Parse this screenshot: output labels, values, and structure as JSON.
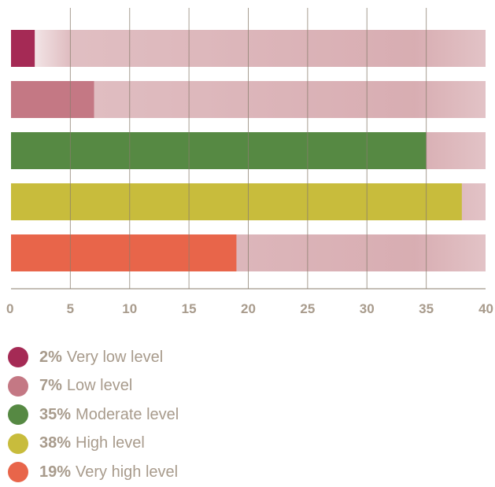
{
  "chart_data": {
    "type": "bar",
    "orientation": "horizontal",
    "categories": [
      "Very low level",
      "Low level",
      "Moderate level",
      "High level",
      "Very high level"
    ],
    "values": [
      2,
      7,
      35,
      38,
      19
    ],
    "xlim": [
      0,
      40
    ],
    "xticks": [
      0,
      5,
      10,
      15,
      20,
      25,
      30,
      35,
      40
    ],
    "grid": true,
    "legend_position": "bottom",
    "colors": [
      "#a52a55",
      "#c47884",
      "#568943",
      "#c8bc3c",
      "#e8654a"
    ],
    "track_color": "#d6a9ae",
    "legend": [
      {
        "pct": "2%",
        "label": "Very low level",
        "color": "#a52a55"
      },
      {
        "pct": "7%",
        "label": "Low level",
        "color": "#c47884"
      },
      {
        "pct": "35%",
        "label": "Moderate level",
        "color": "#568943"
      },
      {
        "pct": "38%",
        "label": "High level",
        "color": "#c8bc3c"
      },
      {
        "pct": "19%",
        "label": "Very high level",
        "color": "#e8654a"
      }
    ]
  }
}
